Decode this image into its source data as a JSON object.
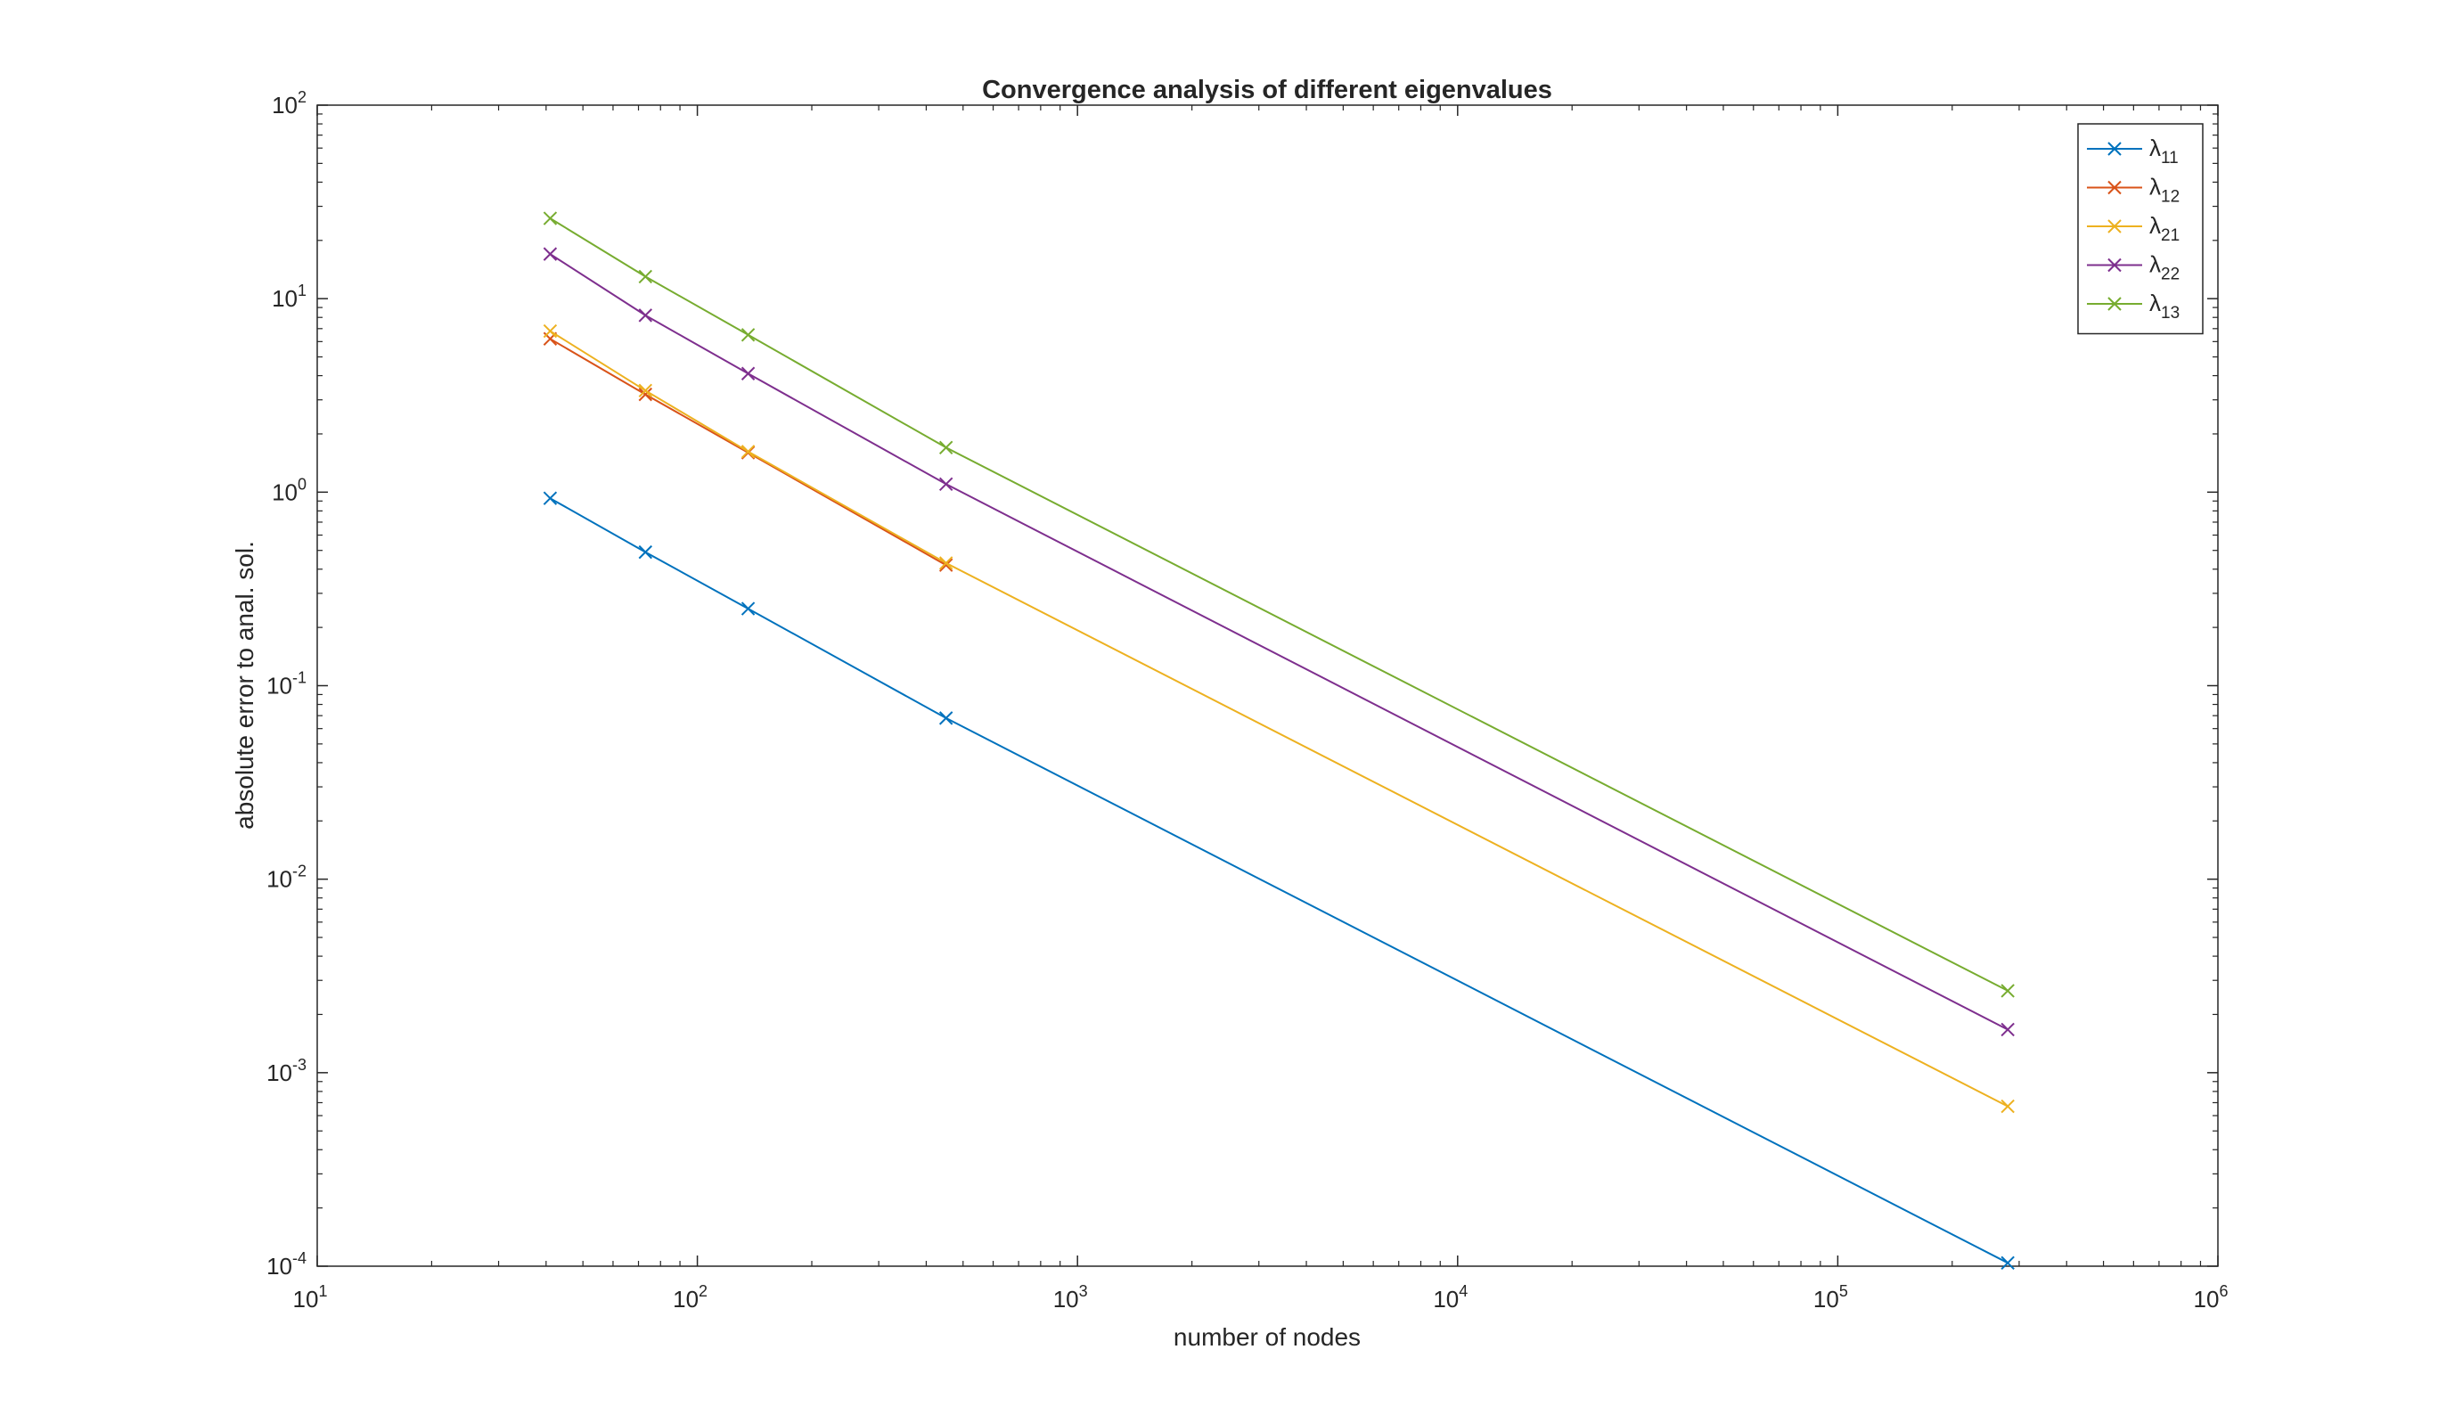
{
  "chart_data": {
    "type": "line",
    "title": "Convergence analysis of different eigenvalues",
    "xlabel": "number of nodes",
    "ylabel": "absolute error to anal. sol.",
    "xscale": "log",
    "yscale": "log",
    "xlim": [
      10,
      1000000
    ],
    "ylim": [
      0.0001,
      100
    ],
    "x_ticks": [
      {
        "base": "10",
        "exp": "1"
      },
      {
        "base": "10",
        "exp": "2"
      },
      {
        "base": "10",
        "exp": "3"
      },
      {
        "base": "10",
        "exp": "4"
      },
      {
        "base": "10",
        "exp": "5"
      },
      {
        "base": "10",
        "exp": "6"
      }
    ],
    "y_ticks": [
      {
        "base": "10",
        "exp": "-4"
      },
      {
        "base": "10",
        "exp": "-3"
      },
      {
        "base": "10",
        "exp": "-2"
      },
      {
        "base": "10",
        "exp": "-1"
      },
      {
        "base": "10",
        "exp": "0"
      },
      {
        "base": "10",
        "exp": "1"
      },
      {
        "base": "10",
        "exp": "2"
      }
    ],
    "grid": false,
    "legend_position": "top-right",
    "marker": "x",
    "series": [
      {
        "name": "λ11",
        "symbol": "λ",
        "subscript": "11",
        "color": "#0072BD",
        "x": [
          41,
          73,
          136,
          451,
          280000
        ],
        "y": [
          0.93,
          0.49,
          0.25,
          0.068,
          0.000104
        ]
      },
      {
        "name": "λ12",
        "symbol": "λ",
        "subscript": "12",
        "color": "#D95319",
        "x": [
          41,
          73,
          136,
          451
        ],
        "y": [
          6.2,
          3.2,
          1.6,
          0.42
        ]
      },
      {
        "name": "λ21",
        "symbol": "λ",
        "subscript": "21",
        "color": "#EDB120",
        "x": [
          41,
          73,
          136,
          451,
          280000
        ],
        "y": [
          6.8,
          3.35,
          1.62,
          0.43,
          0.00067
        ]
      },
      {
        "name": "λ22",
        "symbol": "λ",
        "subscript": "22",
        "color": "#7E2F8E",
        "x": [
          41,
          73,
          136,
          451,
          280000
        ],
        "y": [
          17.0,
          8.2,
          4.1,
          1.1,
          0.00167
        ]
      },
      {
        "name": "λ13",
        "symbol": "λ",
        "subscript": "13",
        "color": "#77AC30",
        "x": [
          41,
          73,
          136,
          451,
          280000
        ],
        "y": [
          26.0,
          13.0,
          6.5,
          1.7,
          0.00265
        ]
      }
    ]
  }
}
